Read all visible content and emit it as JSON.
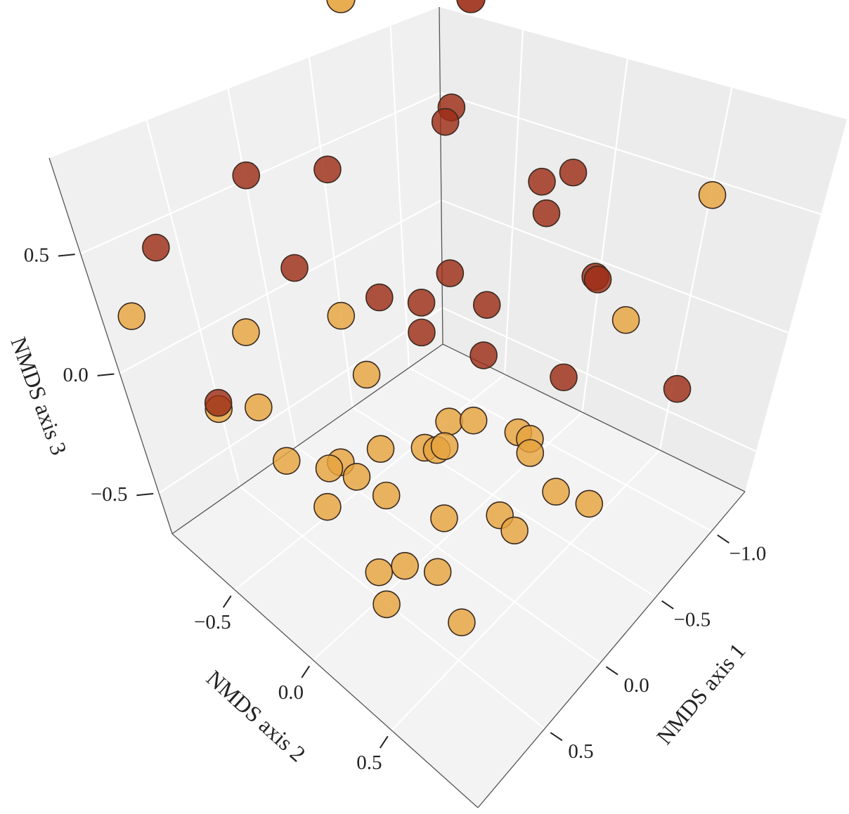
{
  "chart_data": {
    "type": "scatter3d",
    "xlabel": "NMDS axis 1",
    "ylabel": "NMDS axis 2",
    "zlabel": "NMDS axis 3",
    "xlim": [
      -1.3,
      1.1
    ],
    "ylim": [
      -0.9,
      1.05
    ],
    "zlim": [
      -0.67,
      0.9
    ],
    "xticks": [
      {
        "value": -1.0,
        "label": "−1.0"
      },
      {
        "value": -0.5,
        "label": "−0.5"
      },
      {
        "value": 0.0,
        "label": "0.0"
      },
      0.5
    ],
    "yticks": [
      {
        "value": -0.5,
        "label": "−0.5"
      },
      {
        "value": 0.0,
        "label": "0.0"
      },
      0.5
    ],
    "zticks": [
      {
        "value": -0.5,
        "label": "−0.5"
      },
      {
        "value": 0.0,
        "label": "0.0"
      },
      0.5
    ],
    "grid": true,
    "series": [
      {
        "color": "#e6a43e",
        "x": [
          -1.2,
          0.14,
          -0.69,
          0.93,
          0.58,
          0.14,
          0.61,
          0.78,
          -0.34,
          -0.43,
          -0.51,
          -0.51,
          -0.43,
          -0.1,
          -0.13,
          -0.18,
          0.07,
          0.51,
          0.3,
          0.38,
          0.32,
          0.31,
          -0.3,
          -0.34,
          0.6,
          0.22,
          0.01,
          0.04,
          0.74,
          0.61,
          0.52,
          0.87,
          0.68
        ],
        "y": [
          0.57,
          -0.35,
          0.56,
          -0.88,
          -0.53,
          -0.24,
          -0.52,
          -0.62,
          -0.15,
          -0.07,
          0.14,
          0.21,
          0.27,
          -0.12,
          -0.07,
          -0.06,
          -0.26,
          -0.5,
          -0.33,
          -0.34,
          -0.22,
          -0.05,
          0.52,
          0.69,
          -0.19,
          0.23,
          0.41,
          0.52,
          0.22,
          0.28,
          0.41,
          0.36,
          0.67
        ],
        "z": [
          0.5,
          0.2,
          0.2,
          0.2,
          0.2,
          0,
          -0.1,
          -0.1,
          -0.35,
          -0.35,
          -0.35,
          -0.35,
          -0.35,
          -0.35,
          -0.35,
          -0.35,
          -0.35,
          -0.35,
          -0.35,
          -0.35,
          -0.35,
          -0.35,
          -0.35,
          -0.35,
          -0.35,
          -0.35,
          -0.35,
          -0.35,
          -0.35,
          -0.35,
          -0.35,
          -0.35,
          -0.35
        ]
      },
      {
        "color": "#9c2d16",
        "x": [
          -0.69,
          -0.65,
          0.11,
          -0.2,
          -0.73,
          -0.87,
          -0.69,
          0.71,
          0.34,
          -0.12,
          -0.5,
          -0.49,
          0.24,
          0.14,
          -0.04,
          0.31,
          0.05,
          -0.06,
          -1.01,
          0.86
        ],
        "y": [
          -0.37,
          -0.37,
          -0.79,
          -0.62,
          0.05,
          0.1,
          0.11,
          -0.83,
          -0.4,
          0.05,
          0.51,
          0.53,
          -0.04,
          0.1,
          0.3,
          0.23,
          0.35,
          0.69,
          0.69,
          -0.53
        ],
        "z": [
          0.8,
          0.75,
          0.6,
          0.6,
          0.6,
          0.6,
          0.5,
          0.45,
          0.45,
          0.45,
          0.45,
          0.45,
          0.45,
          0.45,
          0.45,
          0.45,
          0.3,
          0.3,
          -0.2,
          0.0
        ]
      }
    ]
  }
}
